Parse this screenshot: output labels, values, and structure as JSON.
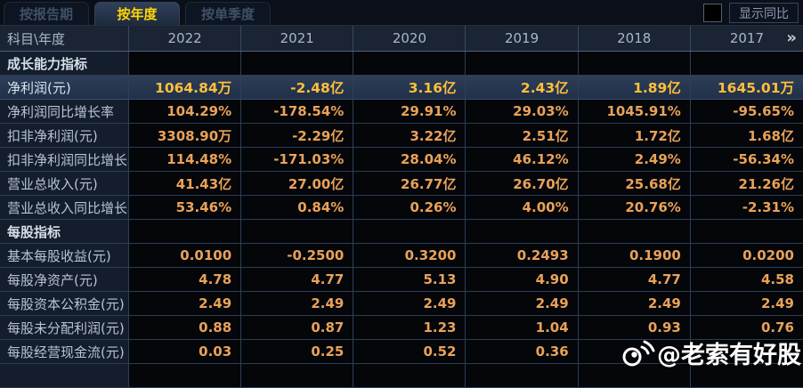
{
  "tabs": [
    {
      "label": "按报告期",
      "active": false
    },
    {
      "label": "按年度",
      "active": true
    },
    {
      "label": "按单季度",
      "active": false
    }
  ],
  "controls": {
    "show_yoy_label": "显示同比",
    "checkbox_checked": false
  },
  "table": {
    "corner_label": "科目\\年度",
    "years": [
      "2022",
      "2021",
      "2020",
      "2019",
      "2018",
      "2017"
    ],
    "more_icon": "»",
    "rows": [
      {
        "type": "section",
        "highlight": false,
        "label": "成长能力指标",
        "values": [
          "",
          "",
          "",
          "",
          "",
          ""
        ]
      },
      {
        "type": "data",
        "highlight": true,
        "label": "净利润(元)",
        "values": [
          "1064.84万",
          "-2.48亿",
          "3.16亿",
          "2.43亿",
          "1.89亿",
          "1645.01万"
        ]
      },
      {
        "type": "data",
        "highlight": false,
        "label": "净利润同比增长率",
        "values": [
          "104.29%",
          "-178.54%",
          "29.91%",
          "29.03%",
          "1045.91%",
          "-95.65%"
        ]
      },
      {
        "type": "data",
        "highlight": false,
        "label": "扣非净利润(元)",
        "values": [
          "3308.90万",
          "-2.29亿",
          "3.22亿",
          "2.51亿",
          "1.72亿",
          "1.68亿"
        ]
      },
      {
        "type": "data",
        "highlight": false,
        "label": "扣非净利润同比增长率",
        "values": [
          "114.48%",
          "-171.03%",
          "28.04%",
          "46.12%",
          "2.49%",
          "-56.34%"
        ]
      },
      {
        "type": "data",
        "highlight": false,
        "label": "营业总收入(元)",
        "values": [
          "41.43亿",
          "27.00亿",
          "26.77亿",
          "26.70亿",
          "25.68亿",
          "21.26亿"
        ]
      },
      {
        "type": "data",
        "highlight": false,
        "label": "营业总收入同比增长率",
        "values": [
          "53.46%",
          "0.84%",
          "0.26%",
          "4.00%",
          "20.76%",
          "-2.31%"
        ]
      },
      {
        "type": "section",
        "highlight": false,
        "label": "每股指标",
        "values": [
          "",
          "",
          "",
          "",
          "",
          ""
        ]
      },
      {
        "type": "data",
        "highlight": false,
        "label": "基本每股收益(元)",
        "values": [
          "0.0100",
          "-0.2500",
          "0.3200",
          "0.2493",
          "0.1900",
          "0.0200"
        ]
      },
      {
        "type": "data",
        "highlight": false,
        "label": "每股净资产(元)",
        "values": [
          "4.78",
          "4.77",
          "5.13",
          "4.90",
          "4.77",
          "4.58"
        ]
      },
      {
        "type": "data",
        "highlight": false,
        "label": "每股资本公积金(元)",
        "values": [
          "2.49",
          "2.49",
          "2.49",
          "2.49",
          "2.49",
          "2.49"
        ]
      },
      {
        "type": "data",
        "highlight": false,
        "label": "每股未分配利润(元)",
        "values": [
          "0.88",
          "0.87",
          "1.23",
          "1.04",
          "0.93",
          "0.76"
        ]
      },
      {
        "type": "data",
        "highlight": false,
        "label": "每股经营现金流(元)",
        "values": [
          "0.03",
          "0.25",
          "0.52",
          "0.36",
          "",
          ""
        ]
      }
    ]
  },
  "watermark": {
    "text": "@老索有好股",
    "icon": "weibo-logo"
  },
  "colors": {
    "accent_yellow": "#ffd400",
    "value_orange": "#e9a258",
    "highlight_value": "#ffbf3a",
    "highlight_row_bg": "#2d3e59",
    "label_col_bg": "#141d2b",
    "header_bg": "#1a2432",
    "data_cell_bg": "#04060a"
  }
}
